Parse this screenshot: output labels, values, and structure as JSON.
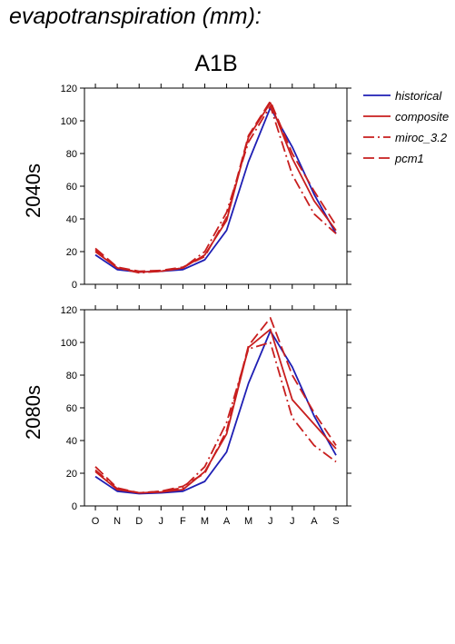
{
  "title": "evapotranspiration (mm):",
  "subtitle": "A1B",
  "colors": {
    "historical": "#1f1fb4",
    "future": "#c81e1e"
  },
  "legend": [
    {
      "name": "historical",
      "color": "#1f1fb4",
      "dash": "solid"
    },
    {
      "name": "composite",
      "color": "#c81e1e",
      "dash": "solid"
    },
    {
      "name": "miroc_3.2",
      "color": "#c81e1e",
      "dash": "dashdot"
    },
    {
      "name": "pcm1",
      "color": "#c81e1e",
      "dash": "dash"
    }
  ],
  "chart_data": [
    {
      "type": "line",
      "title": "2040s",
      "xlabel": "",
      "ylabel": "",
      "categories": [
        "O",
        "N",
        "D",
        "J",
        "F",
        "M",
        "A",
        "M",
        "J",
        "J",
        "A",
        "S"
      ],
      "yticks": [
        0,
        20,
        40,
        60,
        80,
        100,
        120
      ],
      "ylim": [
        0,
        120
      ],
      "series": [
        {
          "name": "historical",
          "values": [
            18,
            9,
            7.5,
            8,
            9,
            15,
            33,
            75,
            108,
            84,
            55,
            31
          ]
        },
        {
          "name": "composite",
          "values": [
            20,
            10,
            7.5,
            8,
            10,
            18,
            39,
            90,
            111,
            77,
            51,
            33
          ]
        },
        {
          "name": "miroc_3.2",
          "values": [
            21,
            10,
            7,
            8,
            10,
            20,
            44,
            87,
            109,
            67,
            43,
            31
          ]
        },
        {
          "name": "pcm1",
          "values": [
            22,
            10.5,
            8,
            8.5,
            10.5,
            17,
            41,
            91,
            112,
            80,
            57,
            36
          ]
        }
      ]
    },
    {
      "type": "line",
      "title": "2080s",
      "xlabel": "",
      "ylabel": "",
      "categories": [
        "O",
        "N",
        "D",
        "J",
        "F",
        "M",
        "A",
        "M",
        "J",
        "J",
        "A",
        "S"
      ],
      "yticks": [
        0,
        20,
        40,
        60,
        80,
        100,
        120
      ],
      "ylim": [
        0,
        120
      ],
      "series": [
        {
          "name": "historical",
          "values": [
            18,
            9,
            7.5,
            8,
            9,
            15,
            33,
            75,
            107,
            85,
            55,
            31
          ]
        },
        {
          "name": "composite",
          "values": [
            21,
            10,
            8,
            8.5,
            10,
            21,
            44,
            97,
            108,
            65,
            50,
            35
          ]
        },
        {
          "name": "miroc_3.2",
          "values": [
            22,
            10.5,
            8,
            9,
            11,
            24,
            51,
            96,
            100,
            54,
            37,
            27
          ]
        },
        {
          "name": "pcm1",
          "values": [
            24,
            11,
            8,
            9,
            12,
            20,
            46,
            98,
            115,
            80,
            57,
            37
          ]
        }
      ]
    }
  ]
}
